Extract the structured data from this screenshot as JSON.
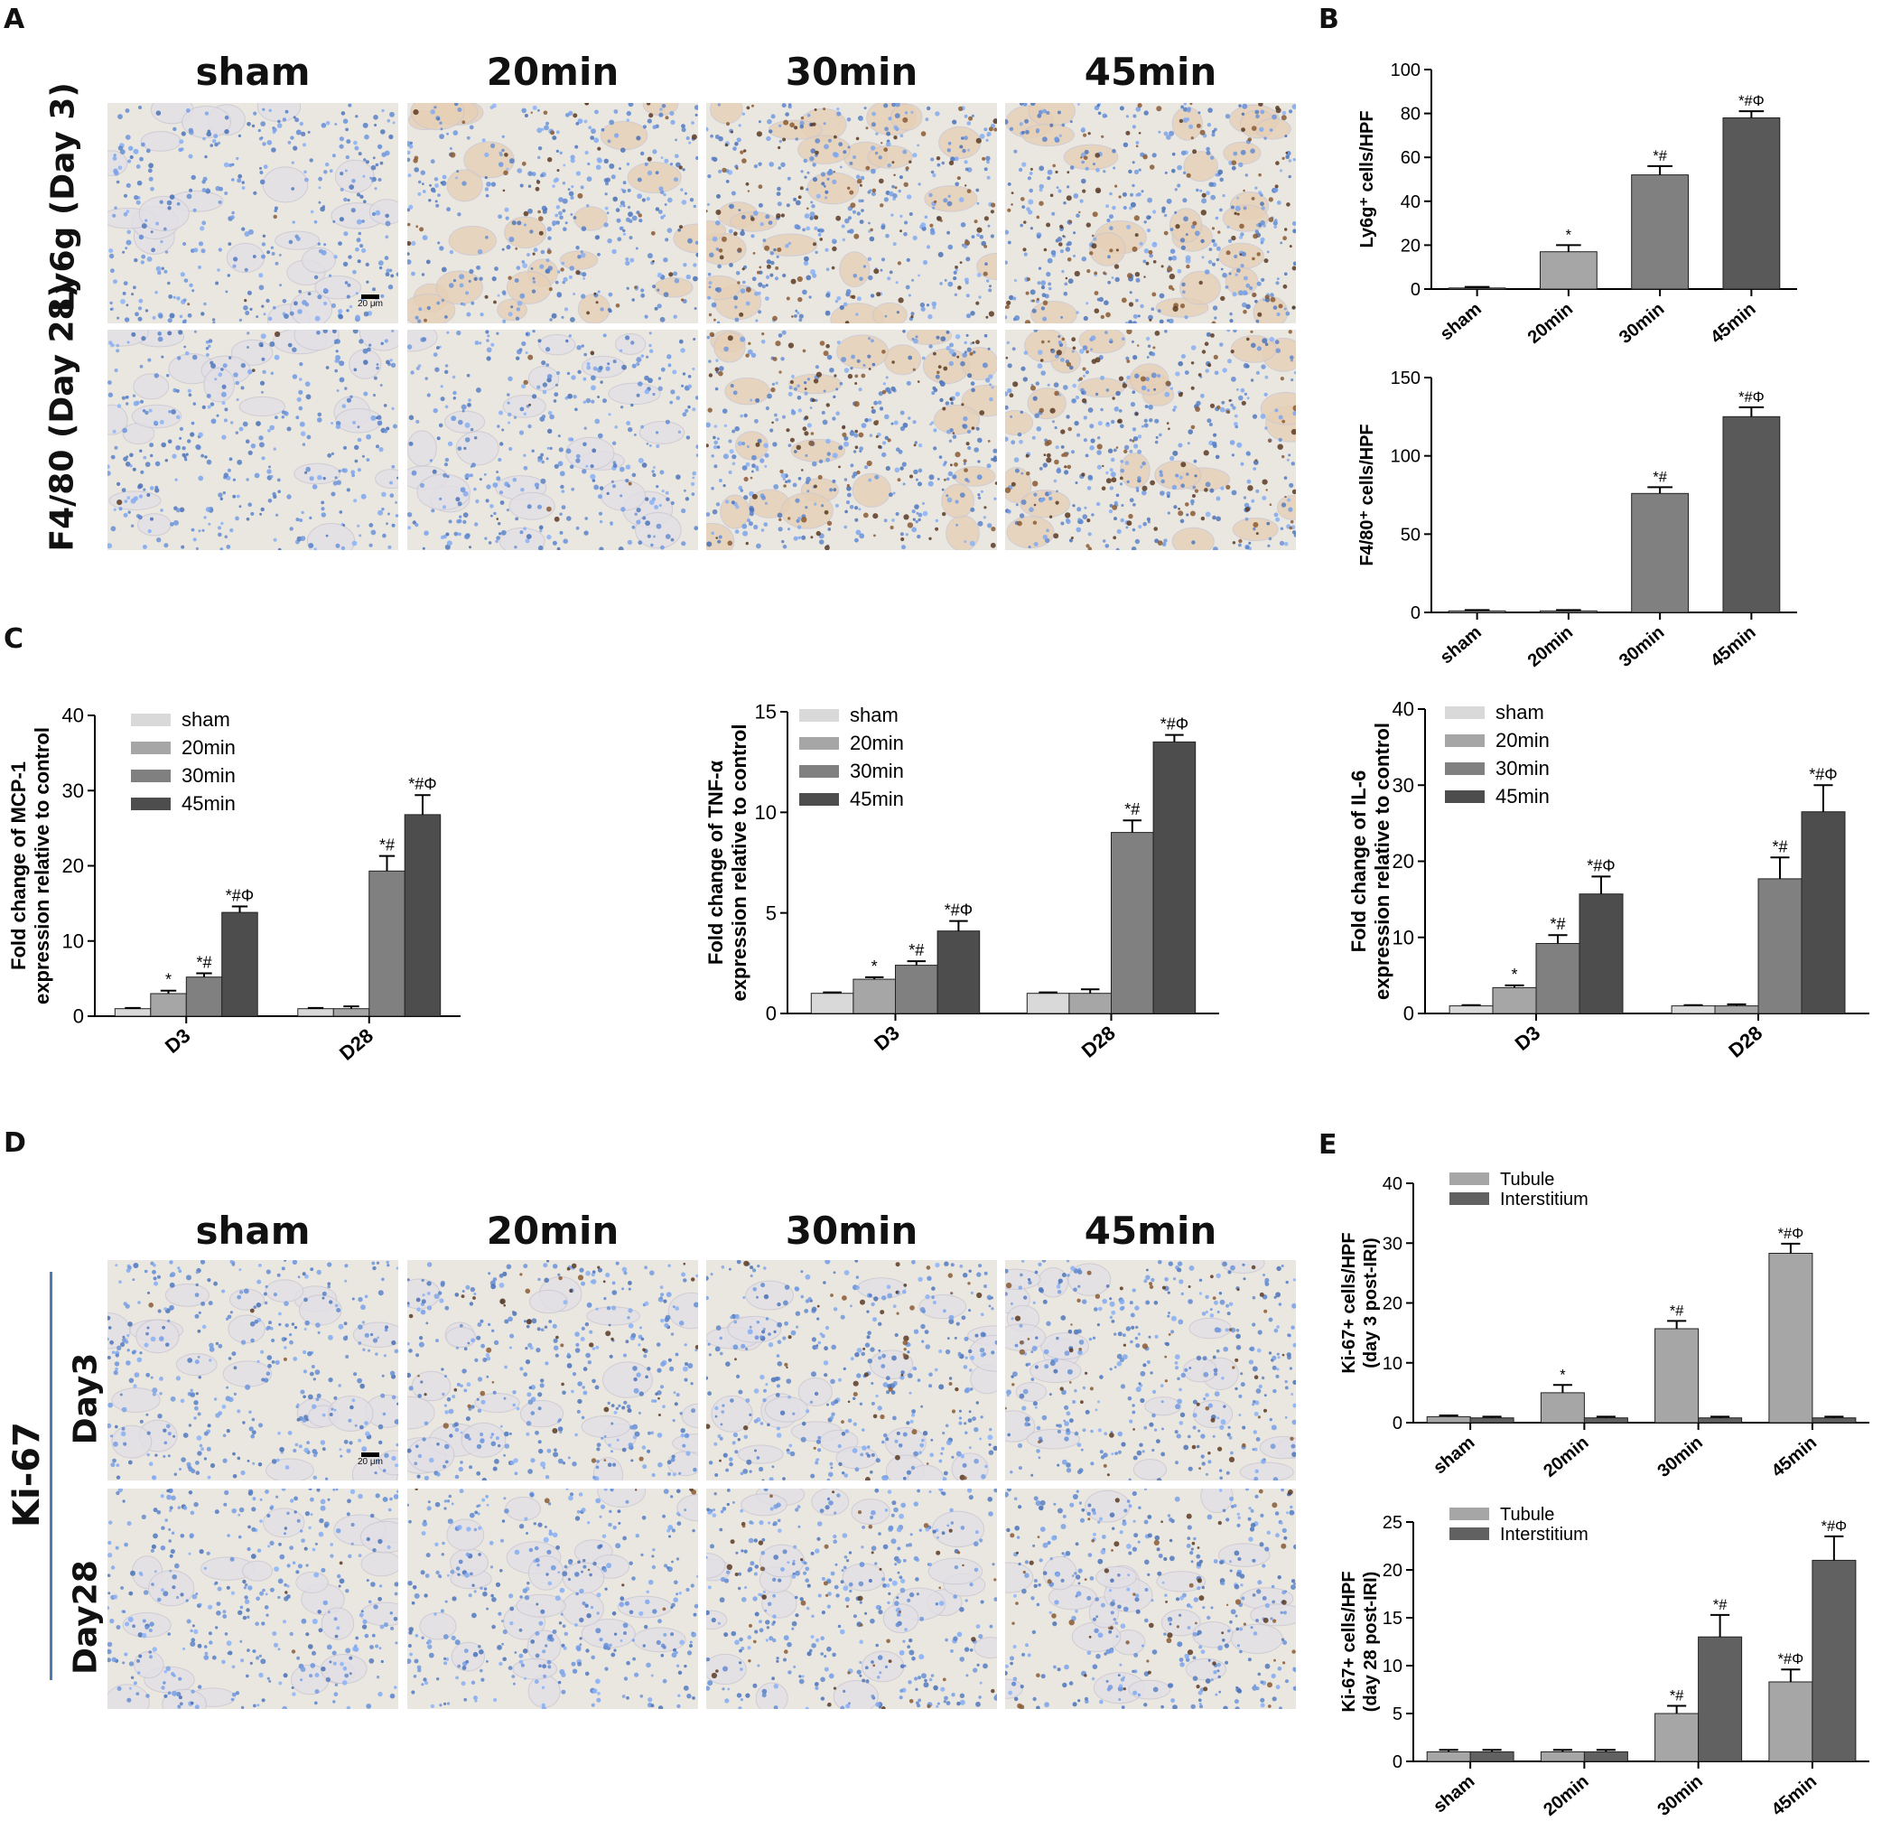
{
  "panel_labels": {
    "A": "A",
    "B": "B",
    "C": "C",
    "D": "D",
    "E": "E"
  },
  "panelA": {
    "columns": [
      "sham",
      "20min",
      "30min",
      "45min"
    ],
    "rows": [
      "Ly6g (Day 3)",
      "F4/80 (Day 28)"
    ],
    "scalebar": "20 μm",
    "stain_intensity": [
      [
        0.02,
        0.35,
        0.8,
        0.9
      ],
      [
        0.02,
        0.05,
        0.75,
        0.85
      ]
    ]
  },
  "panelD": {
    "columns": [
      "sham",
      "20min",
      "30min",
      "45min"
    ],
    "group_label": "Ki-67",
    "rows": [
      "Day3",
      "Day28"
    ],
    "scalebar": "20 μm",
    "stain_intensity": [
      [
        0.02,
        0.25,
        0.3,
        0.35
      ],
      [
        0.02,
        0.05,
        0.3,
        0.4
      ]
    ]
  },
  "colors": {
    "sham": "#d9d9d9",
    "20min": "#a6a6a6",
    "30min": "#808080",
    "45min": "#4d4d4d",
    "tubule": "#a6a6a6",
    "interstitium": "#616161",
    "bar_single": [
      "#bfbfbf",
      "#a6a6a6",
      "#808080",
      "#595959"
    ]
  },
  "chart_data": [
    {
      "id": "B1",
      "type": "bar",
      "categories": [
        "sham",
        "20min",
        "30min",
        "45min"
      ],
      "values": [
        0.5,
        17,
        52,
        78
      ],
      "errors": [
        0.5,
        3,
        4,
        3
      ],
      "annotations": [
        "",
        "*",
        "*#",
        "*#Φ"
      ],
      "ylabel": "Ly6g⁺ cells/HPF",
      "ylim": [
        0,
        100
      ],
      "yticks": [
        0,
        20,
        40,
        60,
        80,
        100
      ]
    },
    {
      "id": "B2",
      "type": "bar",
      "categories": [
        "sham",
        "20min",
        "30min",
        "45min"
      ],
      "values": [
        1,
        1,
        76,
        125
      ],
      "errors": [
        0.5,
        0.5,
        4,
        6
      ],
      "annotations": [
        "",
        "",
        "*#",
        "*#Φ"
      ],
      "ylabel": "F4/80⁺ cells/HPF",
      "ylim": [
        0,
        150
      ],
      "yticks": [
        0,
        50,
        100,
        150
      ]
    },
    {
      "id": "C1",
      "type": "bar",
      "categories": [
        "D3",
        "D28"
      ],
      "series": [
        {
          "name": "sham",
          "values": [
            1,
            1
          ],
          "errors": [
            0.1,
            0.1
          ],
          "annotations": [
            "",
            ""
          ]
        },
        {
          "name": "20min",
          "values": [
            3,
            1
          ],
          "errors": [
            0.4,
            0.3
          ],
          "annotations": [
            "*",
            ""
          ]
        },
        {
          "name": "30min",
          "values": [
            5.2,
            19.3
          ],
          "errors": [
            0.5,
            2
          ],
          "annotations": [
            "*#",
            "*#"
          ]
        },
        {
          "name": "45min",
          "values": [
            13.8,
            26.8
          ],
          "errors": [
            0.8,
            2.6
          ],
          "annotations": [
            "*#Φ",
            "*#Φ"
          ]
        }
      ],
      "ylabel": "Fold change of MCP-1 expression relative to control",
      "ylim": [
        0,
        40
      ],
      "yticks": [
        0,
        10,
        20,
        30,
        40
      ],
      "legend": "top-left"
    },
    {
      "id": "C2",
      "type": "bar",
      "categories": [
        "D3",
        "D28"
      ],
      "series": [
        {
          "name": "sham",
          "values": [
            1,
            1
          ],
          "errors": [
            0.05,
            0.05
          ],
          "annotations": [
            "",
            ""
          ]
        },
        {
          "name": "20min",
          "values": [
            1.7,
            1
          ],
          "errors": [
            0.1,
            0.2
          ],
          "annotations": [
            "*",
            ""
          ]
        },
        {
          "name": "30min",
          "values": [
            2.4,
            9
          ],
          "errors": [
            0.2,
            0.6
          ],
          "annotations": [
            "*#",
            "*#"
          ]
        },
        {
          "name": "45min",
          "values": [
            4.1,
            13.5
          ],
          "errors": [
            0.5,
            0.35
          ],
          "annotations": [
            "*#Φ",
            "*#Φ"
          ]
        }
      ],
      "ylabel": "Fold change of TNF-α expression relative to control",
      "ylim": [
        0,
        15
      ],
      "yticks": [
        0,
        5,
        10,
        15
      ],
      "legend": "top-left"
    },
    {
      "id": "C3",
      "type": "bar",
      "categories": [
        "D3",
        "D28"
      ],
      "series": [
        {
          "name": "sham",
          "values": [
            1,
            1
          ],
          "errors": [
            0.1,
            0.1
          ],
          "annotations": [
            "",
            ""
          ]
        },
        {
          "name": "20min",
          "values": [
            3.4,
            1
          ],
          "errors": [
            0.3,
            0.2
          ],
          "annotations": [
            "*",
            ""
          ]
        },
        {
          "name": "30min",
          "values": [
            9.2,
            17.7
          ],
          "errors": [
            1.1,
            2.8
          ],
          "annotations": [
            "*#",
            "*#"
          ]
        },
        {
          "name": "45min",
          "values": [
            15.7,
            26.5
          ],
          "errors": [
            2.3,
            3.5
          ],
          "annotations": [
            "*#Φ",
            "*#Φ"
          ]
        }
      ],
      "ylabel": "Fold change of IL-6 expression relative to control",
      "ylim": [
        0,
        40
      ],
      "yticks": [
        0,
        10,
        20,
        30,
        40
      ],
      "legend": "top-left"
    },
    {
      "id": "E1",
      "type": "bar",
      "categories": [
        "sham",
        "20min",
        "30min",
        "45min"
      ],
      "series": [
        {
          "name": "Tubule",
          "values": [
            1,
            5,
            15.7,
            28.3
          ],
          "errors": [
            0.2,
            1.3,
            1.3,
            1.6
          ],
          "annotations": [
            "",
            "*",
            "*#",
            "*#Φ"
          ]
        },
        {
          "name": "Interstitium",
          "values": [
            0.8,
            0.8,
            0.8,
            0.8
          ],
          "errors": [
            0.2,
            0.2,
            0.2,
            0.2
          ],
          "annotations": [
            "",
            "",
            "",
            ""
          ]
        }
      ],
      "ylabel": "Ki-67+ cells/HPF (day 3 post-IRI)",
      "ylim": [
        0,
        40
      ],
      "yticks": [
        0,
        10,
        20,
        30,
        40
      ],
      "legend": "top-left"
    },
    {
      "id": "E2",
      "type": "bar",
      "categories": [
        "sham",
        "20min",
        "30min",
        "45min"
      ],
      "series": [
        {
          "name": "Tubule",
          "values": [
            1,
            1,
            5,
            8.3
          ],
          "errors": [
            0.2,
            0.2,
            0.8,
            1.3
          ],
          "annotations": [
            "",
            "",
            "*#",
            "*#Φ"
          ]
        },
        {
          "name": "Interstitium",
          "values": [
            1,
            1,
            13,
            21
          ],
          "errors": [
            0.2,
            0.2,
            2.3,
            2.5
          ],
          "annotations": [
            "",
            "",
            "*#",
            "*#Φ"
          ]
        }
      ],
      "ylabel": "Ki-67+ cells/HPF (day 28 post-IRI)",
      "ylim": [
        0,
        25
      ],
      "yticks": [
        0,
        5,
        10,
        15,
        20,
        25
      ],
      "legend": "top-left"
    }
  ]
}
